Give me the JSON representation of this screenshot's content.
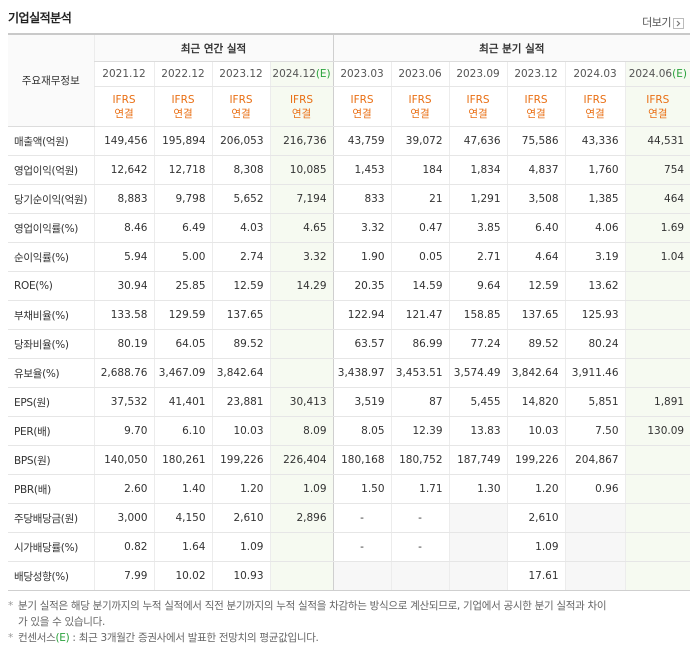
{
  "header": {
    "title": "기업실적분석",
    "more": "더보기"
  },
  "table": {
    "row_header": "주요재무정보",
    "groups": [
      "최근 연간 실적",
      "최근 분기 실적"
    ],
    "periods": [
      {
        "label": "2021.12"
      },
      {
        "label": "2022.12"
      },
      {
        "label": "2023.12"
      },
      {
        "label": "2024.12",
        "estimate": "(E)"
      },
      {
        "label": "2023.03"
      },
      {
        "label": "2023.06"
      },
      {
        "label": "2023.09"
      },
      {
        "label": "2023.12"
      },
      {
        "label": "2024.03"
      },
      {
        "label": "2024.06",
        "estimate": "(E)"
      }
    ],
    "standards": [
      {
        "top": "IFRS",
        "bottom": "연결"
      },
      {
        "top": "IFRS",
        "bottom": "연결"
      },
      {
        "top": "IFRS",
        "bottom": "연결"
      },
      {
        "top": "IFRS",
        "bottom": "연결"
      },
      {
        "top": "IFRS",
        "bottom": "연결"
      },
      {
        "top": "IFRS",
        "bottom": "연결"
      },
      {
        "top": "IFRS",
        "bottom": "연결"
      },
      {
        "top": "IFRS",
        "bottom": "연결"
      },
      {
        "top": "IFRS",
        "bottom": "연결"
      },
      {
        "top": "IFRS",
        "bottom": "연결"
      }
    ],
    "rows": [
      {
        "label": "매출액(억원)",
        "values": [
          "149,456",
          "195,894",
          "206,053",
          "216,736",
          "43,759",
          "39,072",
          "47,636",
          "75,586",
          "43,336",
          "44,531"
        ]
      },
      {
        "label": "영업이익(억원)",
        "values": [
          "12,642",
          "12,718",
          "8,308",
          "10,085",
          "1,453",
          "184",
          "1,834",
          "4,837",
          "1,760",
          "754"
        ]
      },
      {
        "label": "당기순이익(억원)",
        "values": [
          "8,883",
          "9,798",
          "5,652",
          "7,194",
          "833",
          "21",
          "1,291",
          "3,508",
          "1,385",
          "464"
        ]
      },
      {
        "label": "영업이익률(%)",
        "values": [
          "8.46",
          "6.49",
          "4.03",
          "4.65",
          "3.32",
          "0.47",
          "3.85",
          "6.40",
          "4.06",
          "1.69"
        ]
      },
      {
        "label": "순이익률(%)",
        "values": [
          "5.94",
          "5.00",
          "2.74",
          "3.32",
          "1.90",
          "0.05",
          "2.71",
          "4.64",
          "3.19",
          "1.04"
        ]
      },
      {
        "label": "ROE(%)",
        "values": [
          "30.94",
          "25.85",
          "12.59",
          "14.29",
          "20.35",
          "14.59",
          "9.64",
          "12.59",
          "13.62",
          null
        ]
      },
      {
        "label": "부채비율(%)",
        "values": [
          "133.58",
          "129.59",
          "137.65",
          null,
          "122.94",
          "121.47",
          "158.85",
          "137.65",
          "125.93",
          null
        ]
      },
      {
        "label": "당좌비율(%)",
        "values": [
          "80.19",
          "64.05",
          "89.52",
          null,
          "63.57",
          "86.99",
          "77.24",
          "89.52",
          "80.24",
          null
        ]
      },
      {
        "label": "유보율(%)",
        "values": [
          "2,688.76",
          "3,467.09",
          "3,842.64",
          null,
          "3,438.97",
          "3,453.51",
          "3,574.49",
          "3,842.64",
          "3,911.46",
          null
        ]
      },
      {
        "label": "EPS(원)",
        "values": [
          "37,532",
          "41,401",
          "23,881",
          "30,413",
          "3,519",
          "87",
          "5,455",
          "14,820",
          "5,851",
          "1,891"
        ]
      },
      {
        "label": "PER(배)",
        "values": [
          "9.70",
          "6.10",
          "10.03",
          "8.09",
          "8.05",
          "12.39",
          "13.83",
          "10.03",
          "7.50",
          "130.09"
        ]
      },
      {
        "label": "BPS(원)",
        "values": [
          "140,050",
          "180,261",
          "199,226",
          "226,404",
          "180,168",
          "180,752",
          "187,749",
          "199,226",
          "204,867",
          null
        ]
      },
      {
        "label": "PBR(배)",
        "values": [
          "2.60",
          "1.40",
          "1.20",
          "1.09",
          "1.50",
          "1.71",
          "1.30",
          "1.20",
          "0.96",
          null
        ]
      },
      {
        "label": "주당배당금(원)",
        "values": [
          "3,000",
          "4,150",
          "2,610",
          "2,896",
          "-",
          "-",
          null,
          "2,610",
          null,
          null
        ]
      },
      {
        "label": "시가배당률(%)",
        "values": [
          "0.82",
          "1.64",
          "1.09",
          null,
          "-",
          "-",
          null,
          "1.09",
          null,
          null
        ]
      },
      {
        "label": "배당성향(%)",
        "values": [
          "7.99",
          "10.02",
          "10.93",
          null,
          null,
          null,
          null,
          "17.61",
          null,
          null
        ]
      }
    ]
  },
  "notes": [
    {
      "text": "분기 실적은 해당 분기까지의 누적 실적에서 직전 분기까지의 누적 실적을 차감하는 방식으로 계산되므로, 기업에서 공시한 분기 실적과 차이가 있을 수 있습니다."
    },
    {
      "term": "컨센서스",
      "estimate": "(E)",
      "text": " : 최근 3개월간 증권사에서 발표한 전망치의 평균값입니다."
    }
  ]
}
